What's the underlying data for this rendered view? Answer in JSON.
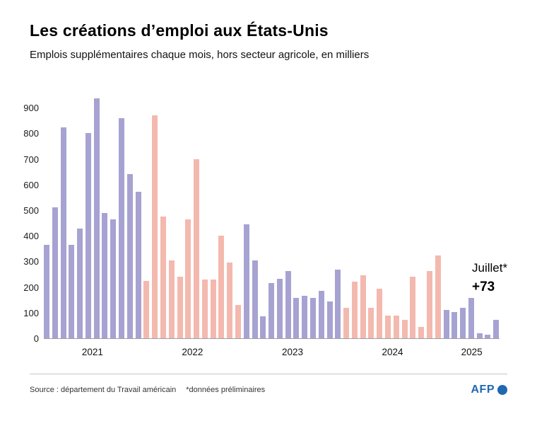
{
  "header": {
    "title": "Les créations d’emploi aux États-Unis",
    "subtitle": "Emplois supplémentaires chaque mois, hors secteur agricole, en milliers"
  },
  "chart_data": {
    "type": "bar",
    "title": "Les créations d’emploi aux États-Unis",
    "xlabel": "",
    "ylabel": "Emplois supplémentaires par mois (milliers)",
    "ylim": [
      0,
      950
    ],
    "yticks": [
      0,
      100,
      200,
      300,
      400,
      500,
      600,
      700,
      800,
      900
    ],
    "grid": false,
    "legend_position": "none",
    "x_unit": "mois (janvier 2021 à juillet 2025)",
    "series": [
      {
        "year": "2021",
        "color": "#a6a3d2",
        "values": [
          364,
          510,
          824,
          364,
          427,
          800,
          935,
          490,
          464,
          860,
          640,
          573
        ]
      },
      {
        "year": "2022",
        "color": "#f4b9ae",
        "values": [
          225,
          870,
          475,
          305,
          240,
          465,
          700,
          230,
          230,
          400,
          295,
          130
        ]
      },
      {
        "year": "2023",
        "color": "#a6a3d2",
        "values": [
          444,
          303,
          85,
          216,
          231,
          262,
          157,
          165,
          158,
          184,
          144,
          269
        ]
      },
      {
        "year": "2024",
        "color": "#f4b9ae",
        "values": [
          119,
          222,
          246,
          118,
          193,
          87,
          88,
          71,
          240,
          44,
          261,
          323
        ]
      },
      {
        "year": "2025",
        "color": "#a6a3d2",
        "values": [
          111,
          102,
          120,
          158,
          19,
          14,
          73
        ]
      }
    ],
    "annotation": {
      "label": "Juillet*",
      "value": "+73"
    }
  },
  "footer": {
    "source": "Source : département du Travail américain",
    "note": "*données préliminaires",
    "logo_text": "AFP"
  },
  "colors": {
    "bar_purple": "#a6a3d2",
    "bar_pink": "#f4b9ae",
    "afp_blue": "#2068b0",
    "text": "#000000"
  }
}
